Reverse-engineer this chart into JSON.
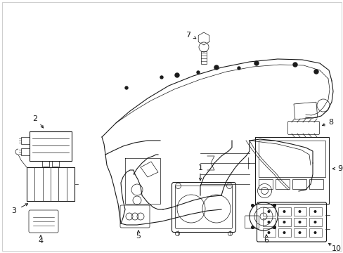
{
  "background_color": "#ffffff",
  "line_color": "#1a1a1a",
  "fig_width": 4.89,
  "fig_height": 3.6,
  "dpi": 100,
  "border": true,
  "components": {
    "label_fontsize": 8,
    "arrow_lw": 0.7,
    "main_lw": 0.8,
    "thin_lw": 0.5
  }
}
